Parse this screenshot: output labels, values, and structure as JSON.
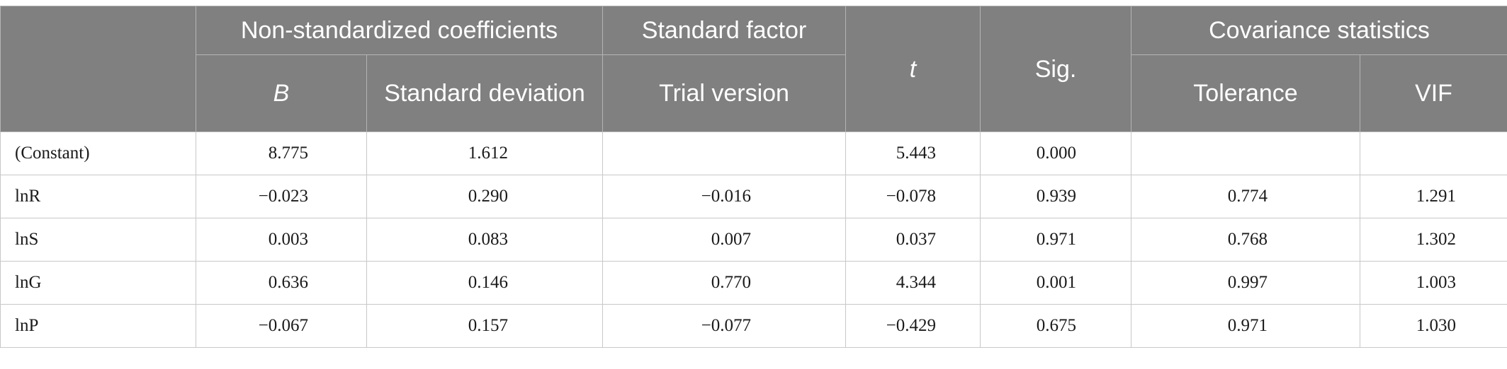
{
  "headers": {
    "group_nonstd": "Non-standardized coefficients",
    "group_stdfactor": "Standard factor",
    "t": "t",
    "sig": "Sig.",
    "group_covariance": "Covariance statistics",
    "b": "B",
    "std_dev": "Standard deviation",
    "trial_version": "Trial version",
    "tolerance": "Tolerance",
    "vif": "VIF"
  },
  "rows": [
    {
      "label": "(Constant)",
      "b": "8.775",
      "sd": "1.612",
      "sf": "",
      "t": "5.443",
      "sig": "0.000",
      "tol": "",
      "vif": ""
    },
    {
      "label": "lnR",
      "b": "−0.023",
      "sd": "0.290",
      "sf": "−0.016",
      "t": "−0.078",
      "sig": "0.939",
      "tol": "0.774",
      "vif": "1.291"
    },
    {
      "label": "lnS",
      "b": "0.003",
      "sd": "0.083",
      "sf": "0.007",
      "t": "0.037",
      "sig": "0.971",
      "tol": "0.768",
      "vif": "1.302"
    },
    {
      "label": "lnG",
      "b": "0.636",
      "sd": "0.146",
      "sf": "0.770",
      "t": "4.344",
      "sig": "0.001",
      "tol": "0.997",
      "vif": "1.003"
    },
    {
      "label": "lnP",
      "b": "−0.067",
      "sd": "0.157",
      "sf": "−0.077",
      "t": "−0.429",
      "sig": "0.675",
      "tol": "0.971",
      "vif": "1.030"
    }
  ]
}
